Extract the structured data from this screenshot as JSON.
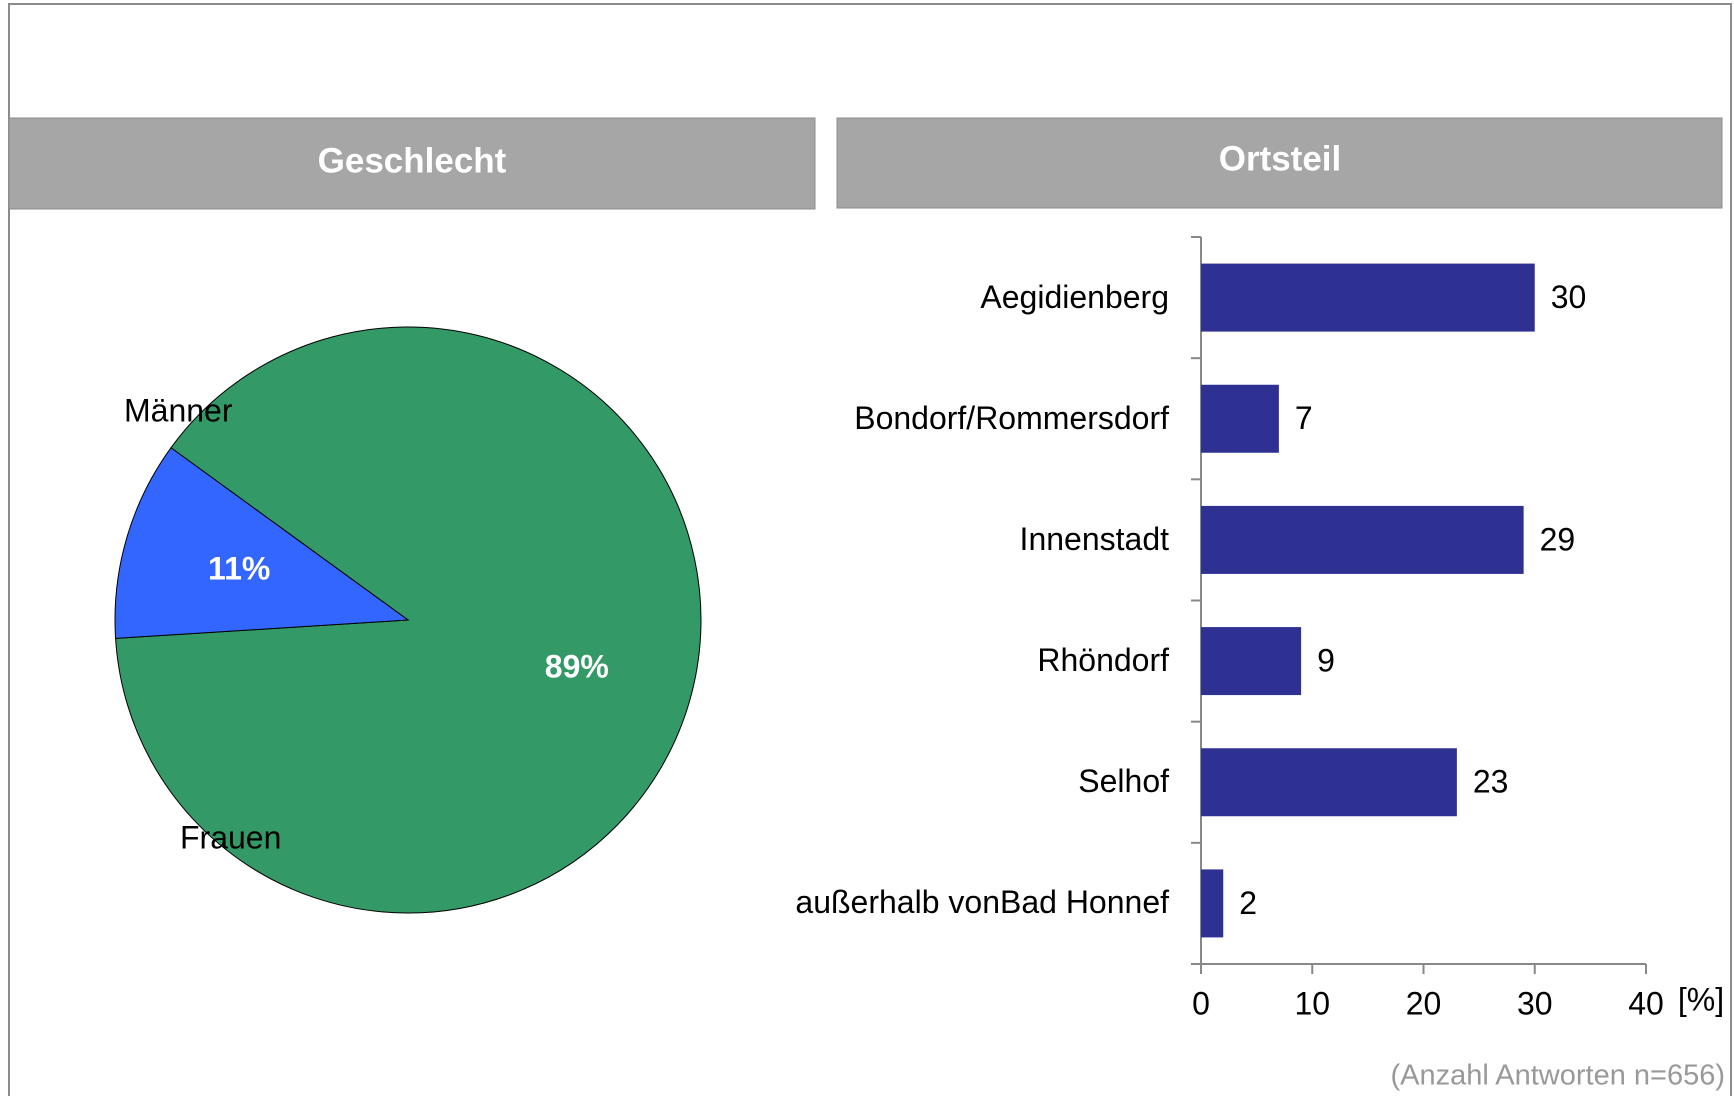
{
  "chart_data": [
    {
      "type": "pie",
      "title": "Geschlecht",
      "categories": [
        "Männer",
        "Frauen"
      ],
      "values": [
        11,
        89
      ],
      "value_labels": [
        "11%",
        "89%"
      ],
      "colors": [
        "#3366ff",
        "#339966"
      ]
    },
    {
      "type": "bar",
      "orientation": "horizontal",
      "title": "Ortsteil",
      "categories": [
        "Aegidienberg",
        "Bondorf/Rommersdorf",
        "Innenstadt",
        "Rhöndorf",
        "Selhof",
        "außerhalb vonBad Honnef"
      ],
      "values": [
        30,
        7,
        29,
        9,
        23,
        2
      ],
      "color": "#2e3192",
      "xlim": [
        0,
        40
      ],
      "xticks": [
        0,
        10,
        20,
        30,
        40
      ],
      "xlabel": "[%]",
      "note": "(Anzahl Antworten n=656)"
    }
  ]
}
